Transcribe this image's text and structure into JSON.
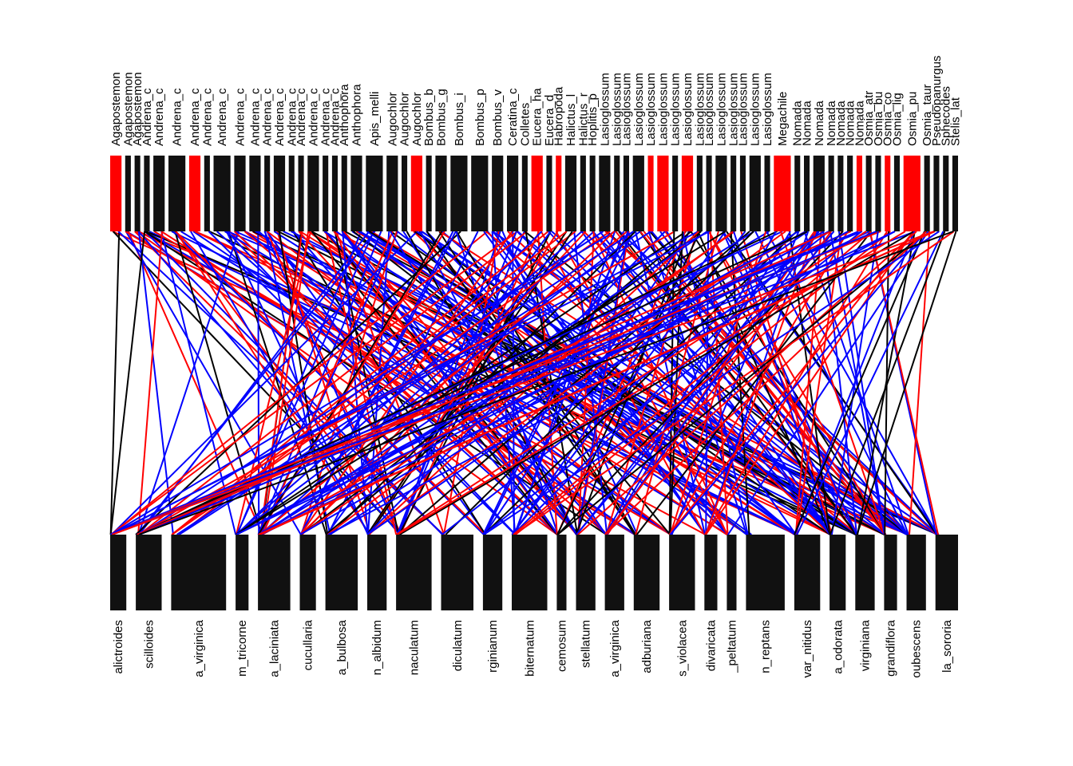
{
  "chart_data": {
    "type": "bipartite-network",
    "title": "",
    "higher_level": {
      "labels": [
        "Agapostemon",
        "Agapostemon",
        "Agapostemon",
        "Andrena_c",
        "Andrena_c",
        "Andrena_c",
        "Andrena_c",
        "Andrena_c",
        "Andrena_c",
        "Andrena_c",
        "Andrena_c",
        "Andrena_c",
        "Andrena_c",
        "Andrena_c",
        "Andrena_c",
        "Andrena_c",
        "Andrena_c",
        "Andrena_c",
        "Anthophora",
        "Anthophora",
        "Apis_melli",
        "Augochlor",
        "Augochlor",
        "Augochlor",
        "Bombus_b",
        "Bombus_g",
        "Bombus_i",
        "Bombus_p",
        "Bombus_v",
        "Ceratina_c",
        "Colletes_",
        "Eucera_ha",
        "Eucera_d",
        "Habropoda",
        "Halictus_l",
        "Halictus_r",
        "Hoplitis_p",
        "Lasioglossum",
        "Lasioglossum",
        "Lasioglossum",
        "Lasioglossum",
        "Lasioglossum",
        "Lasioglossum",
        "Lasioglossum",
        "Lasioglossum",
        "Lasioglossum",
        "Lasioglossum",
        "Lasioglossum",
        "Lasioglossum",
        "Lasioglossum",
        "Lasioglossum",
        "Lasioglossum",
        "Megachile",
        "Nomada",
        "Nomada",
        "Nomada",
        "Nomada",
        "Nomada",
        "Nomada",
        "Nomada",
        "Osmia_atr",
        "Osmia_bu",
        "Osmia_co",
        "Osmia_lig",
        "Osmia_pu",
        "Osmia_taur",
        "Pseudopanurgus",
        "Sphecodes",
        "Stelis_lat"
      ],
      "abundance": [
        2,
        1,
        1,
        1,
        2,
        3,
        2,
        1,
        3,
        2,
        2,
        1,
        2,
        1,
        1,
        2,
        1,
        1,
        1,
        2,
        3,
        2,
        1,
        2,
        1,
        2,
        3,
        3,
        2,
        2,
        1,
        2,
        1,
        1,
        2,
        1,
        1,
        2,
        1,
        1,
        2,
        1,
        2,
        1,
        2,
        1,
        1,
        2,
        1,
        1,
        2,
        1,
        3,
        1,
        1,
        2,
        1,
        1,
        1,
        1,
        1,
        1,
        1,
        1,
        3,
        1,
        1,
        1,
        1
      ],
      "highlight": [
        true,
        false,
        false,
        false,
        false,
        false,
        true,
        false,
        false,
        false,
        false,
        false,
        false,
        false,
        false,
        false,
        false,
        false,
        false,
        false,
        false,
        false,
        false,
        true,
        false,
        false,
        false,
        false,
        false,
        false,
        false,
        true,
        false,
        true,
        false,
        false,
        false,
        false,
        false,
        false,
        false,
        true,
        true,
        false,
        true,
        false,
        false,
        false,
        false,
        false,
        false,
        false,
        true,
        false,
        false,
        false,
        false,
        false,
        false,
        true,
        false,
        false,
        true,
        false,
        true,
        false,
        false,
        false,
        false
      ]
    },
    "lower_level": {
      "labels": [
        "alictroides",
        "scilloides",
        "a_virginica",
        "m_tricorne",
        "a_laciniata",
        "cucullaria",
        "a_bulbosa",
        "n_albidum",
        "naculatum",
        "diculatum",
        "rginianum",
        "biternatum",
        "cemosum",
        "stellatum",
        "a_virginica",
        "adburiana",
        "s_violacea",
        "divaricata",
        "_peltatum",
        "n_reptans",
        "var_nitidus",
        "a_odorata",
        "virginiana",
        "grandiflora",
        "oubescens",
        "la_sororia"
      ],
      "abundance": [
        5,
        8,
        17,
        4,
        10,
        5,
        10,
        6,
        11,
        10,
        6,
        11,
        3,
        6,
        6,
        8,
        8,
        4,
        3,
        12,
        8,
        5,
        6,
        4,
        6,
        7
      ]
    },
    "link_colors": [
      "#000000",
      "#0000ff",
      "#ff0000"
    ],
    "bar_color": "#111111",
    "highlight_color": "#ff0000"
  }
}
